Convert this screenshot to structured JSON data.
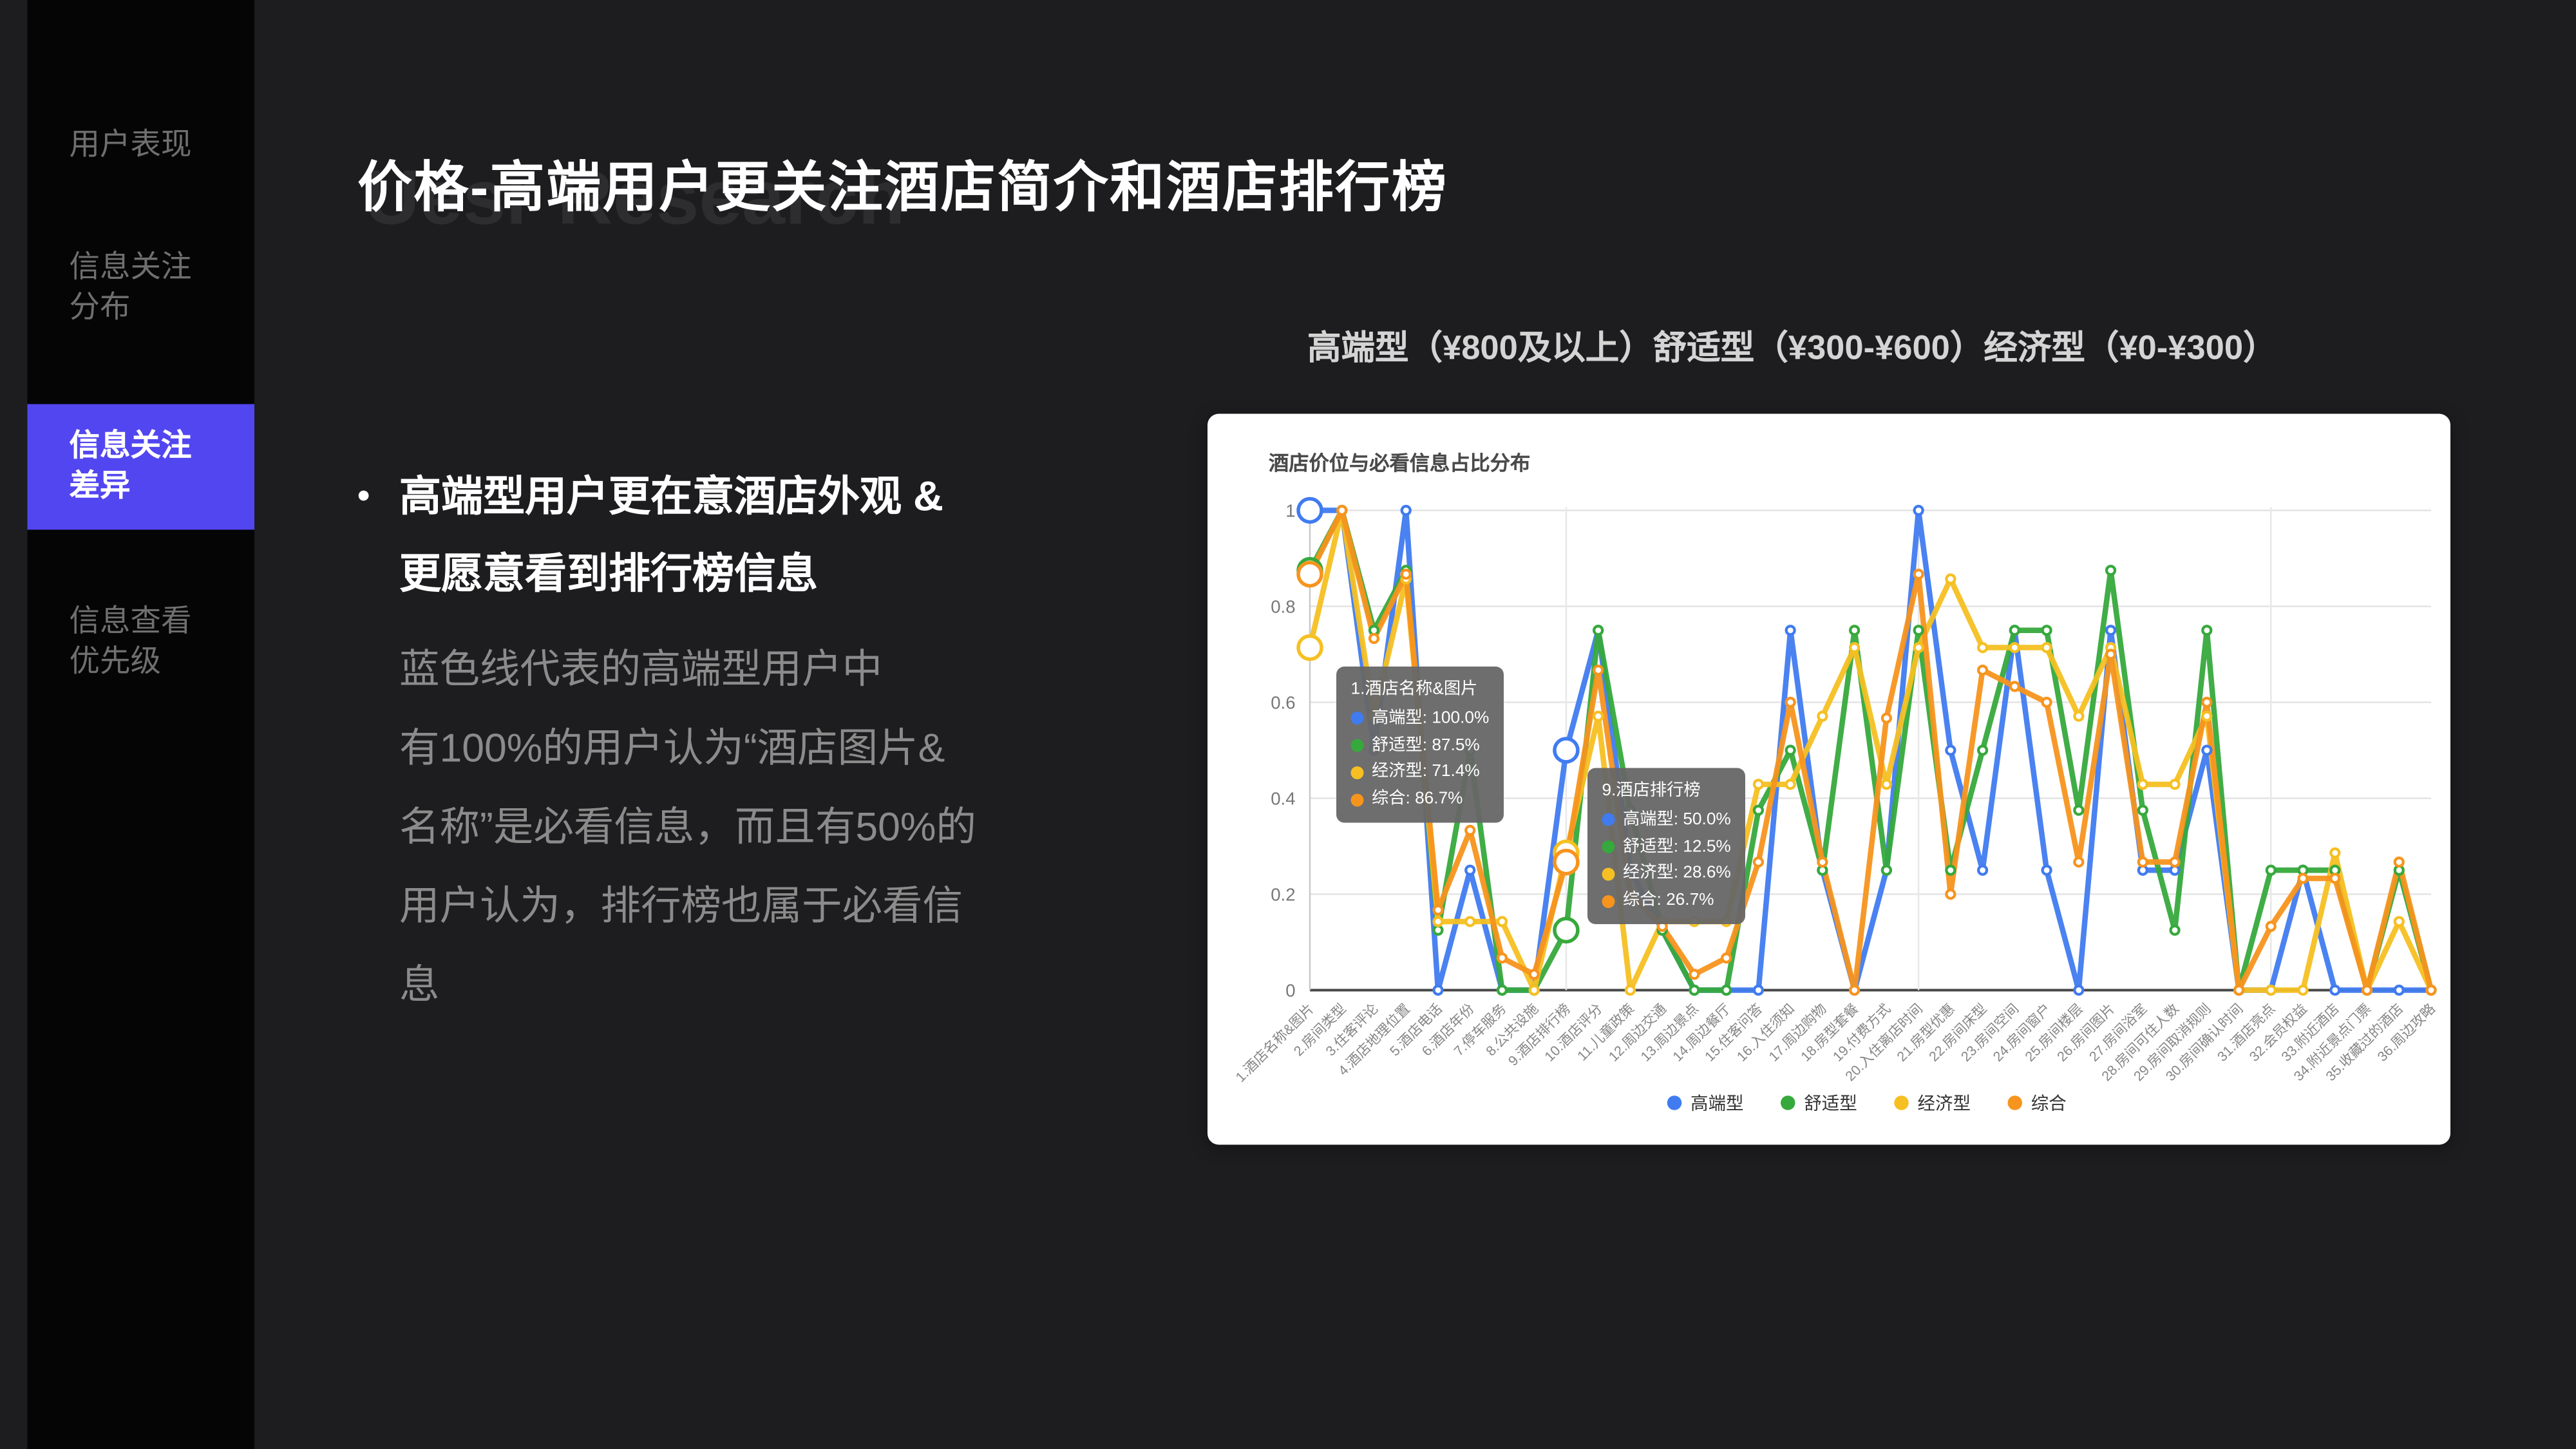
{
  "sidebar": {
    "items": [
      {
        "id": "user-performance",
        "lines": [
          "用户表现"
        ],
        "active": false
      },
      {
        "id": "info-attention-distribution",
        "lines": [
          "信息关注",
          "分布"
        ],
        "active": false
      },
      {
        "id": "info-attention-difference",
        "lines": [
          "信息关注",
          "差异"
        ],
        "active": true
      },
      {
        "id": "info-view-priority",
        "lines": [
          "信息查看",
          "优先级"
        ],
        "active": false
      }
    ],
    "active_color": "#5246f0"
  },
  "header": {
    "title": "价格-高端用户更关注酒店简介和酒店排行榜",
    "watermark": "Uesr Research"
  },
  "subtitle": "高端型（¥800及以上）舒适型（¥300-¥600）经济型（¥0-¥300）",
  "bullet": {
    "lines": [
      "高端型用户更在意酒店外观 &",
      "更愿意看到排行榜信息"
    ]
  },
  "paragraph": {
    "lines": [
      "蓝色线代表的高端型用户中",
      " 有100%的用户认为“酒店图片&",
      "名称”是必看信息，而且有50%的",
      "用户认为，排行榜也属于必看信",
      "息"
    ]
  },
  "chart_card": {
    "title": "酒店价位与必看信息占比分布"
  },
  "chart_data": {
    "type": "line",
    "title": "酒店价位与必看信息占比分布",
    "ylim": [
      0,
      1
    ],
    "yticks": [
      "0",
      "0.2",
      "0.4",
      "0.6",
      "0.8",
      "1"
    ],
    "grid": true,
    "legend_position": "bottom",
    "categories": [
      "1.酒店名称&图片",
      "2.房间类型",
      "3.住客评论",
      "4.酒店地理位置",
      "5.酒店电话",
      "6.酒店年份",
      "7.停车服务",
      "8.公共设施",
      "9.酒店排行榜",
      "10.酒店评分",
      "11.儿童政策",
      "12.周边交通",
      "13.周边景点",
      "14.周边餐厅",
      "15.住客问答",
      "16.入住须知",
      "17.周边购物",
      "18.房型套餐",
      "19.付费方式",
      "20.入住离店时间",
      "21.房型优惠",
      "22.房间床型",
      "23.房间空间",
      "24.房间窗户",
      "25.房间楼层",
      "26.房间图片",
      "27.房间浴室",
      "28.房间可住人数",
      "29.房间取消规则",
      "30.房间确认时间",
      "31.酒店亮点",
      "32.会员权益",
      "33.附近酒店",
      "34.附近景点门票",
      "35.收藏过的酒店",
      "36.周边攻略"
    ],
    "series": [
      {
        "name": "高端型",
        "color": "#407bf0",
        "values": [
          100,
          100,
          50,
          100,
          0,
          25,
          0,
          0,
          50,
          75,
          25,
          12.5,
          0,
          0,
          0,
          75,
          25,
          0,
          25,
          100,
          50,
          25,
          75,
          25,
          0,
          75,
          25,
          25,
          50,
          0,
          0,
          25,
          0,
          0,
          0,
          0
        ]
      },
      {
        "name": "舒适型",
        "color": "#36a93c",
        "values": [
          87.5,
          100,
          75,
          87.5,
          12.5,
          50,
          0,
          0,
          12.5,
          75,
          37.5,
          12.5,
          0,
          0,
          37.5,
          50,
          25,
          75,
          25,
          75,
          25,
          50,
          75,
          75,
          37.5,
          87.5,
          37.5,
          12.5,
          75,
          0,
          25,
          25,
          25,
          0,
          25,
          0
        ]
      },
      {
        "name": "经济型",
        "color": "#f6c022",
        "values": [
          71.4,
          100,
          57.1,
          85.7,
          14.3,
          14.3,
          14.3,
          0,
          28.6,
          57.1,
          0,
          14.3,
          14.3,
          14.3,
          42.9,
          42.9,
          57.1,
          71.4,
          42.9,
          71.4,
          85.7,
          71.4,
          71.4,
          71.4,
          57.1,
          71.4,
          42.9,
          42.9,
          57.1,
          0,
          0,
          0,
          28.6,
          0,
          14.3,
          0
        ]
      },
      {
        "name": "综合",
        "color": "#f7941e",
        "values": [
          86.7,
          100,
          73.3,
          86.7,
          16.7,
          33.3,
          6.7,
          3.3,
          26.7,
          66.7,
          20,
          13.3,
          3.3,
          6.7,
          26.7,
          60,
          26.7,
          0,
          56.7,
          86.7,
          20,
          66.7,
          63.3,
          60,
          26.7,
          70,
          26.7,
          26.7,
          60,
          0,
          13.3,
          23.3,
          23.3,
          0,
          26.7,
          0
        ]
      }
    ],
    "highlight_indices": [
      0,
      8
    ],
    "tooltips": [
      {
        "title": "1.酒店名称&图片",
        "rows": [
          {
            "label": "高端型",
            "value": "100.0%",
            "color": "#407bf0"
          },
          {
            "label": "舒适型",
            "value": "87.5%",
            "color": "#36a93c"
          },
          {
            "label": "经济型",
            "value": "71.4%",
            "color": "#f6c022"
          },
          {
            "label": "综合",
            "value": "86.7%",
            "color": "#f7941e"
          }
        ]
      },
      {
        "title": "9.酒店排行榜",
        "rows": [
          {
            "label": "高端型",
            "value": "50.0%",
            "color": "#407bf0"
          },
          {
            "label": "舒适型",
            "value": "12.5%",
            "color": "#36a93c"
          },
          {
            "label": "经济型",
            "value": "28.6%",
            "color": "#f6c022"
          },
          {
            "label": "综合",
            "value": "26.7%",
            "color": "#f7941e"
          }
        ]
      }
    ]
  }
}
